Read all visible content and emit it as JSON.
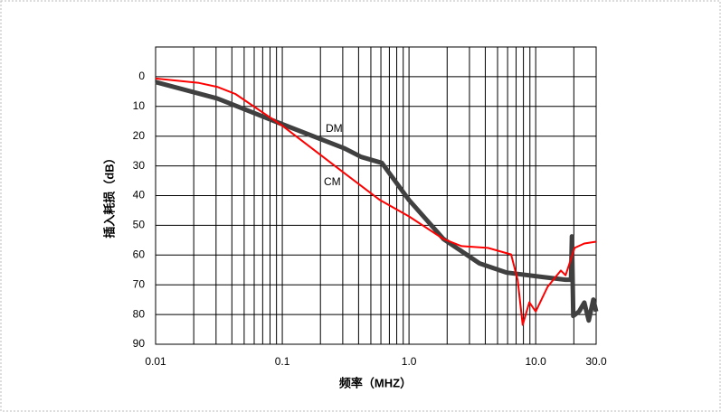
{
  "chart_data": {
    "type": "line",
    "x_label": "频率（MHZ）",
    "y_label": "插入耗损（dB）",
    "x_log": true,
    "y_inverted": true,
    "grid": true,
    "minor_grid": true,
    "xlim": [
      0.01,
      30
    ],
    "ylim": [
      -10,
      90
    ],
    "xticks": [
      0.01,
      0.1,
      {
        "value": 1,
        "label": "1.0"
      },
      {
        "value": 10,
        "label": "10.0"
      },
      {
        "value": 30,
        "label": "30.0"
      }
    ],
    "yticks": [
      0,
      10,
      20,
      30,
      40,
      50,
      60,
      70,
      80,
      90
    ],
    "series": [
      {
        "name": "DM",
        "color": "#404040",
        "x": [
          0.01,
          0.0306,
          0.1,
          0.306,
          0.42,
          0.61,
          1.0,
          1.87,
          3.6,
          5.9,
          11.4,
          17.2,
          19.0,
          19.3,
          19.8,
          22,
          24.2,
          26.2,
          28.5,
          30
        ],
        "values": [
          1.8,
          7.3,
          16,
          24,
          27,
          29,
          41.5,
          54.6,
          62.8,
          65.9,
          67.4,
          68.3,
          68.3,
          53.7,
          80.5,
          79,
          76,
          82,
          75,
          79
        ]
      },
      {
        "name": "CM",
        "color": "#ff0000",
        "x": [
          0.01,
          0.022,
          0.0306,
          0.0426,
          0.1,
          0.306,
          0.59,
          1.0,
          1.87,
          2.6,
          4.2,
          6.4,
          7.2,
          7.9,
          8.9,
          10,
          12.4,
          15.8,
          17.2,
          18.7,
          20.3,
          24.2,
          30
        ],
        "values": [
          0.6,
          2.1,
          3.4,
          5.8,
          16.5,
          32.3,
          41.5,
          47,
          54.6,
          57,
          57.6,
          59.8,
          68.3,
          83.5,
          75.9,
          79,
          70.7,
          65.2,
          66.8,
          62.2,
          57.6,
          56.1,
          55.5
        ]
      }
    ]
  }
}
